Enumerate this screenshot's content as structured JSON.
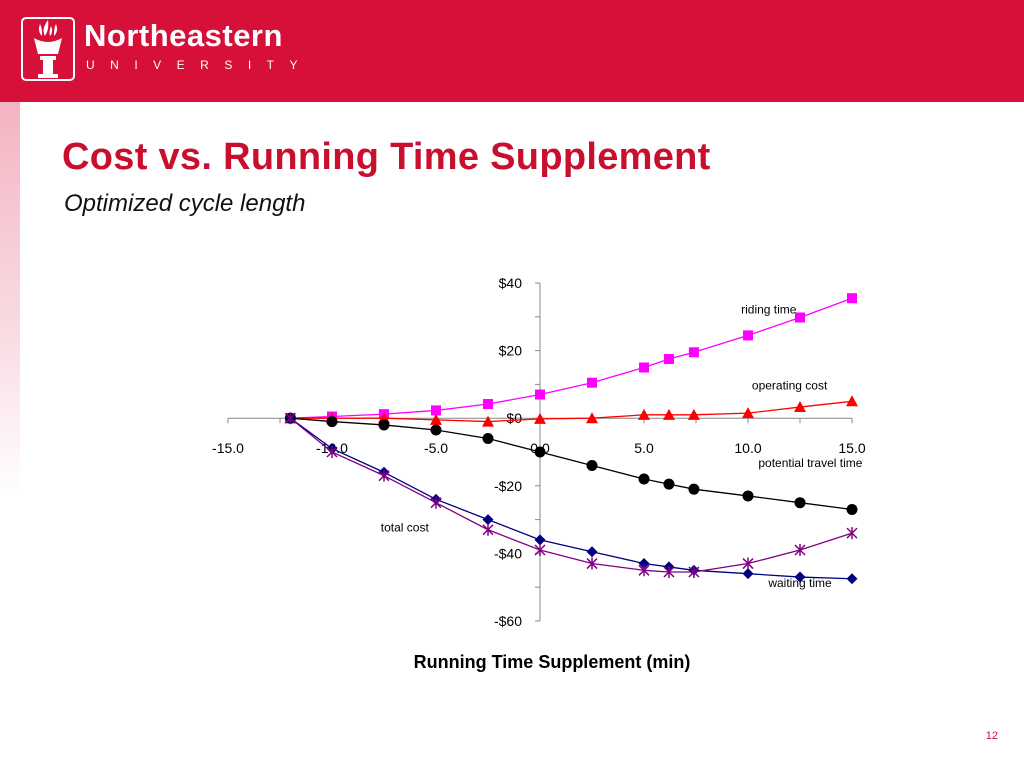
{
  "header": {
    "logo_word": "Northeastern",
    "logo_sub": "UNIVERSITY"
  },
  "slide": {
    "title": "Cost vs. Running Time Supplement",
    "subtitle": "Optimized cycle length",
    "page_number": "12"
  },
  "colors": {
    "banner": "#d7103a",
    "title": "#c8102e"
  },
  "chart_data": {
    "type": "line",
    "title": "",
    "xlabel": "Running Time Supplement (min)",
    "ylabel": "",
    "xlim": [
      -15,
      15
    ],
    "ylim": [
      -60,
      40
    ],
    "x_ticks": [
      "-15.0",
      "-10.0",
      "-5.0",
      "0.0",
      "5.0",
      "10.0",
      "15.0"
    ],
    "y_ticks": [
      {
        "value": 40,
        "label": "$40"
      },
      {
        "value": 20,
        "label": "$20"
      },
      {
        "value": 0,
        "label": "$0"
      },
      {
        "value": -20,
        "label": "-$20"
      },
      {
        "value": -40,
        "label": "-$40"
      },
      {
        "value": -60,
        "label": "-$60"
      }
    ],
    "grid": false,
    "series": [
      {
        "name": "riding time",
        "color": "#ff00ff",
        "marker": "square",
        "x": [
          -12,
          -10,
          -7.5,
          -5,
          -2.5,
          0,
          2.5,
          5,
          6.2,
          7.4,
          10,
          12.5,
          15
        ],
        "y": [
          0,
          0.5,
          1.2,
          2.3,
          4.2,
          7,
          10.5,
          15,
          17.5,
          19.5,
          24.5,
          29.8,
          35.5
        ],
        "label_xy": [
          11,
          31
        ]
      },
      {
        "name": "operating cost",
        "color": "#ff0000",
        "marker": "triangle",
        "x": [
          -12,
          -10,
          -7.5,
          -5,
          -2.5,
          0,
          2.5,
          5,
          6.2,
          7.4,
          10,
          12.5,
          15
        ],
        "y": [
          0,
          0,
          0,
          -0.5,
          -1,
          -0.2,
          0,
          1,
          1,
          1,
          1.5,
          3.3,
          5
        ],
        "label_xy": [
          12,
          8.5
        ]
      },
      {
        "name": "potential travel time",
        "color": "#000000",
        "marker": "circle",
        "x": [
          -12,
          -10,
          -7.5,
          -5,
          -2.5,
          0,
          2.5,
          5,
          6.2,
          7.4,
          10,
          12.5,
          15
        ],
        "y": [
          0,
          -1,
          -2,
          -3.5,
          -6,
          -10,
          -14,
          -18,
          -19.5,
          -21,
          -23,
          -25,
          -27
        ],
        "label_xy": [
          13,
          -14.5
        ]
      },
      {
        "name": "total cost",
        "color": "#000080",
        "marker": "diamond",
        "x": [
          -12,
          -10,
          -7.5,
          -5,
          -2.5,
          0,
          2.5,
          5,
          6.2,
          7.4,
          10,
          12.5,
          15
        ],
        "y": [
          0,
          -9,
          -16,
          -24,
          -30,
          -36,
          -39.5,
          -43,
          -44,
          -45,
          -46,
          -47,
          -47.5
        ],
        "label_xy": [
          -6.5,
          -33.5
        ]
      },
      {
        "name": "waiting time",
        "color": "#800080",
        "marker": "star",
        "x": [
          -12,
          -10,
          -7.5,
          -5,
          -2.5,
          0,
          2.5,
          5,
          6.2,
          7.4,
          10,
          12.5,
          15
        ],
        "y": [
          0,
          -10,
          -17,
          -25,
          -33,
          -39,
          -43,
          -45,
          -45.5,
          -45.5,
          -43,
          -39,
          -34
        ],
        "label_xy": [
          12.5,
          -50
        ]
      }
    ]
  }
}
